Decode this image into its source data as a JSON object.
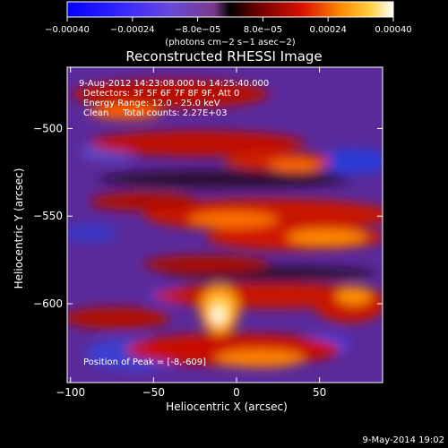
{
  "colorbar": {
    "ticks": [
      "−0.00040",
      "−0.00024",
      "−8.0e−05",
      "8.0e−05",
      "0.00024",
      "0.00040"
    ],
    "tick_values": [
      -0.0004,
      -0.00024,
      -8e-05,
      8e-05,
      0.00024,
      0.0004
    ],
    "range": [
      -0.0004,
      0.0004
    ],
    "units_label": "(photons cm−2 s−1 asec−2)"
  },
  "title": "Reconstructed RHESSI Image",
  "info": {
    "time_range": "9-Aug-2012 14:23:08.000 to 14:25:40.000",
    "detectors": "Detectors: 3F 5F 6F 7F 8F 9F, Att 0",
    "energy": "Energy Range: 12.0 - 25.0 keV",
    "method_counts": "Clean     Total counts: 2.27E+03"
  },
  "peak_label": "Position of Peak = [-8,-609]",
  "axes": {
    "xlabel": "Heliocentric X (arcsec)",
    "ylabel": "Heliocentric Y (arcsec)",
    "xlim": [
      -102,
      88
    ],
    "ylim": [
      -645,
      -465
    ],
    "xticks": [
      -100,
      -50,
      0,
      50
    ],
    "yticks": [
      -500,
      -550,
      -600
    ]
  },
  "footer_date": "9-May-2014 19:02"
}
